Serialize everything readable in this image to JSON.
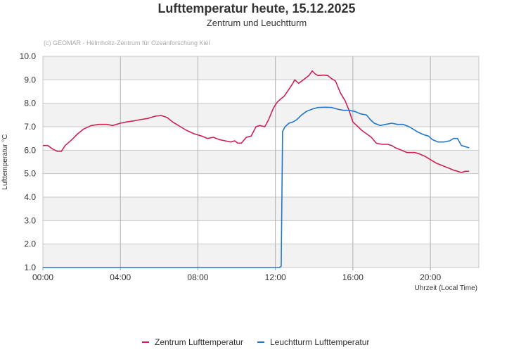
{
  "chart_data": {
    "type": "line",
    "title": "Lufttemperatur heute, 15.12.2025",
    "subtitle": "Zentrum und Leuchtturm",
    "credit": "(c) GEOMAR - Helmholtz-Zentrum für Ozeanforschung Kiel",
    "xlabel": "Uhrzeit (Local Time)",
    "ylabel": "Lufttemperatur °C",
    "xlim": [
      0,
      22.5
    ],
    "ylim": [
      1.0,
      10.0
    ],
    "x_ticks": [
      {
        "value": 0,
        "label": "00:00"
      },
      {
        "value": 4,
        "label": "04:00"
      },
      {
        "value": 8,
        "label": "08:00"
      },
      {
        "value": 12,
        "label": "12:00"
      },
      {
        "value": 16,
        "label": "16:00"
      },
      {
        "value": 20,
        "label": "20:00"
      }
    ],
    "y_ticks": [
      {
        "value": 1,
        "label": "1.0"
      },
      {
        "value": 2,
        "label": "2.0"
      },
      {
        "value": 3,
        "label": "3.0"
      },
      {
        "value": 4,
        "label": "4.0"
      },
      {
        "value": 5,
        "label": "5.0"
      },
      {
        "value": 6,
        "label": "6.0"
      },
      {
        "value": 7,
        "label": "7.0"
      },
      {
        "value": 8,
        "label": "8.0"
      },
      {
        "value": 9,
        "label": "9.0"
      },
      {
        "value": 10,
        "label": "10.0"
      }
    ],
    "grid": true,
    "legend_position": "bottom-center",
    "series": [
      {
        "name": "Zentrum Lufttemperatur",
        "color": "#cc2255",
        "points": [
          [
            0,
            6.2
          ],
          [
            0.25,
            6.2
          ],
          [
            0.5,
            6.05
          ],
          [
            0.75,
            5.95
          ],
          [
            0.95,
            5.95
          ],
          [
            1.15,
            6.2
          ],
          [
            1.5,
            6.45
          ],
          [
            1.8,
            6.7
          ],
          [
            2.1,
            6.9
          ],
          [
            2.5,
            7.05
          ],
          [
            2.9,
            7.1
          ],
          [
            3.3,
            7.1
          ],
          [
            3.6,
            7.05
          ],
          [
            4.0,
            7.15
          ],
          [
            4.3,
            7.2
          ],
          [
            4.7,
            7.25
          ],
          [
            5.0,
            7.3
          ],
          [
            5.4,
            7.35
          ],
          [
            5.8,
            7.45
          ],
          [
            6.1,
            7.48
          ],
          [
            6.4,
            7.4
          ],
          [
            6.7,
            7.2
          ],
          [
            7.0,
            7.05
          ],
          [
            7.4,
            6.85
          ],
          [
            7.8,
            6.7
          ],
          [
            8.2,
            6.6
          ],
          [
            8.5,
            6.5
          ],
          [
            8.8,
            6.55
          ],
          [
            9.1,
            6.45
          ],
          [
            9.4,
            6.4
          ],
          [
            9.7,
            6.35
          ],
          [
            9.9,
            6.4
          ],
          [
            10.05,
            6.3
          ],
          [
            10.25,
            6.3
          ],
          [
            10.5,
            6.55
          ],
          [
            10.75,
            6.6
          ],
          [
            11.0,
            7.0
          ],
          [
            11.2,
            7.05
          ],
          [
            11.45,
            7.0
          ],
          [
            11.65,
            7.3
          ],
          [
            11.9,
            7.8
          ],
          [
            12.1,
            8.05
          ],
          [
            12.3,
            8.2
          ],
          [
            12.45,
            8.3
          ],
          [
            12.7,
            8.6
          ],
          [
            12.9,
            8.85
          ],
          [
            13.0,
            9.0
          ],
          [
            13.2,
            8.85
          ],
          [
            13.45,
            9.0
          ],
          [
            13.6,
            9.1
          ],
          [
            13.75,
            9.2
          ],
          [
            13.9,
            9.38
          ],
          [
            14.05,
            9.25
          ],
          [
            14.2,
            9.18
          ],
          [
            14.5,
            9.2
          ],
          [
            14.7,
            9.18
          ],
          [
            14.9,
            9.05
          ],
          [
            15.1,
            8.95
          ],
          [
            15.35,
            8.45
          ],
          [
            15.6,
            8.1
          ],
          [
            15.8,
            7.7
          ],
          [
            16.0,
            7.2
          ],
          [
            16.2,
            7.05
          ],
          [
            16.45,
            6.85
          ],
          [
            16.7,
            6.7
          ],
          [
            16.95,
            6.55
          ],
          [
            17.2,
            6.3
          ],
          [
            17.5,
            6.25
          ],
          [
            17.8,
            6.25
          ],
          [
            18.0,
            6.2
          ],
          [
            18.2,
            6.1
          ],
          [
            18.5,
            6.0
          ],
          [
            18.8,
            5.9
          ],
          [
            19.2,
            5.9
          ],
          [
            19.4,
            5.85
          ],
          [
            19.7,
            5.75
          ],
          [
            20.0,
            5.6
          ],
          [
            20.3,
            5.45
          ],
          [
            20.6,
            5.35
          ],
          [
            20.9,
            5.25
          ],
          [
            21.2,
            5.15
          ],
          [
            21.4,
            5.1
          ],
          [
            21.6,
            5.05
          ],
          [
            21.8,
            5.1
          ],
          [
            22.0,
            5.1
          ]
        ]
      },
      {
        "name": "Leuchtturm Lufttemperatur",
        "color": "#2277cc",
        "points": [
          [
            0,
            1.0
          ],
          [
            12.2,
            1.0
          ],
          [
            12.3,
            1.05
          ],
          [
            12.37,
            6.8
          ],
          [
            12.5,
            7.0
          ],
          [
            12.7,
            7.15
          ],
          [
            12.9,
            7.2
          ],
          [
            13.1,
            7.3
          ],
          [
            13.35,
            7.5
          ],
          [
            13.6,
            7.65
          ],
          [
            13.9,
            7.75
          ],
          [
            14.2,
            7.82
          ],
          [
            14.6,
            7.83
          ],
          [
            14.9,
            7.82
          ],
          [
            15.2,
            7.75
          ],
          [
            15.5,
            7.7
          ],
          [
            15.8,
            7.7
          ],
          [
            16.1,
            7.65
          ],
          [
            16.4,
            7.55
          ],
          [
            16.7,
            7.5
          ],
          [
            16.9,
            7.3
          ],
          [
            17.1,
            7.15
          ],
          [
            17.4,
            7.05
          ],
          [
            17.7,
            7.1
          ],
          [
            18.0,
            7.15
          ],
          [
            18.3,
            7.1
          ],
          [
            18.6,
            7.1
          ],
          [
            18.9,
            7.0
          ],
          [
            19.1,
            6.9
          ],
          [
            19.4,
            6.75
          ],
          [
            19.7,
            6.65
          ],
          [
            19.9,
            6.6
          ],
          [
            20.1,
            6.45
          ],
          [
            20.4,
            6.35
          ],
          [
            20.7,
            6.35
          ],
          [
            21.0,
            6.4
          ],
          [
            21.2,
            6.5
          ],
          [
            21.4,
            6.5
          ],
          [
            21.6,
            6.2
          ],
          [
            21.8,
            6.15
          ],
          [
            22.0,
            6.1
          ]
        ]
      }
    ]
  }
}
